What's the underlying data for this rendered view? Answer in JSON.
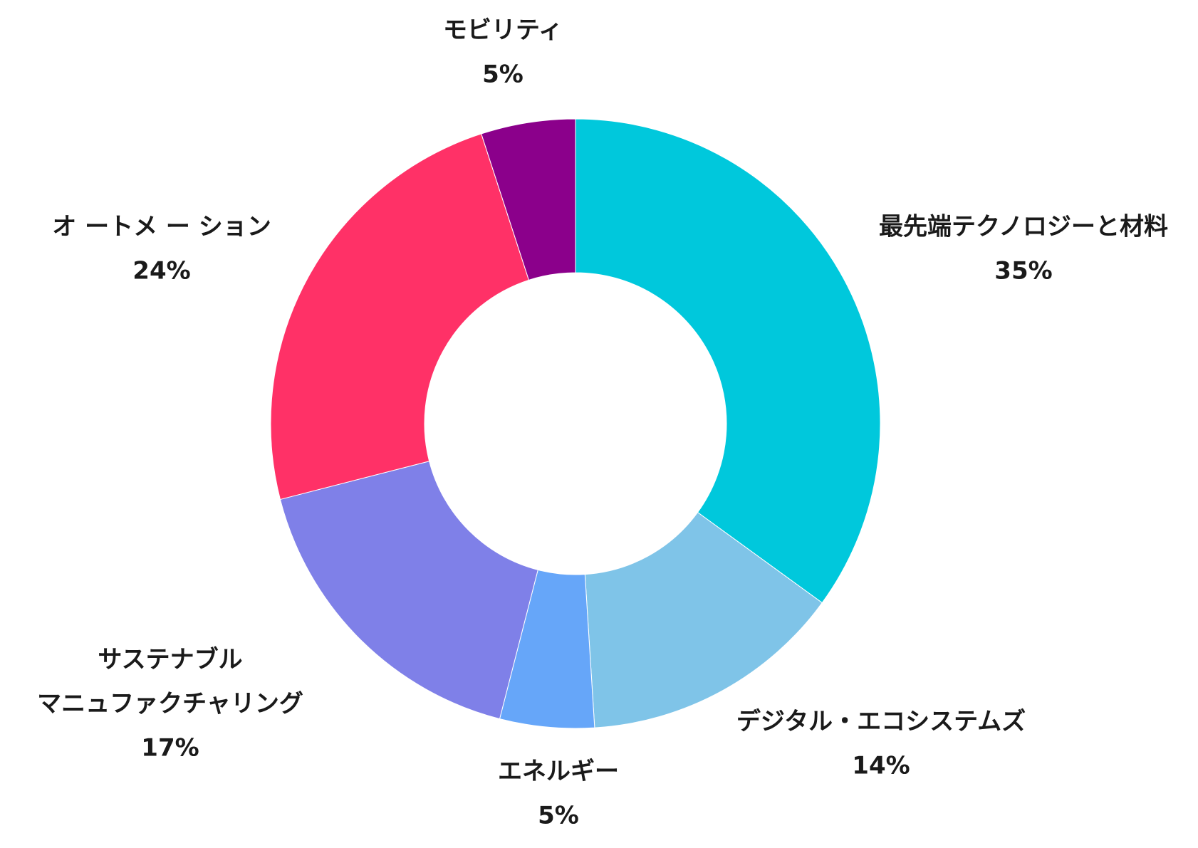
{
  "chart_data": {
    "type": "pie",
    "variant": "donut",
    "title": "",
    "legend": "none",
    "slices": [
      {
        "label_lines": [
          "最先端テクノロジーと材料"
        ],
        "value_label": "35%",
        "value": 35,
        "color": "#00C8DC"
      },
      {
        "label_lines": [
          "デジタル・エコシステムズ"
        ],
        "value_label": "14%",
        "value": 14,
        "color": "#7FC4E8"
      },
      {
        "label_lines": [
          "エネルギー"
        ],
        "value_label": "5%",
        "value": 5,
        "color": "#66A6F9"
      },
      {
        "label_lines": [
          "サステナブル",
          "マニュファクチャリング"
        ],
        "value_label": "17%",
        "value": 17,
        "color": "#7F80E8"
      },
      {
        "label_lines": [
          "オ ートメ ー ション"
        ],
        "value_label": "24%",
        "value": 24,
        "color": "#FF3167"
      },
      {
        "label_lines": [
          "モビリティ"
        ],
        "value_label": "5%",
        "value": 5,
        "color": "#8B008B"
      }
    ]
  }
}
